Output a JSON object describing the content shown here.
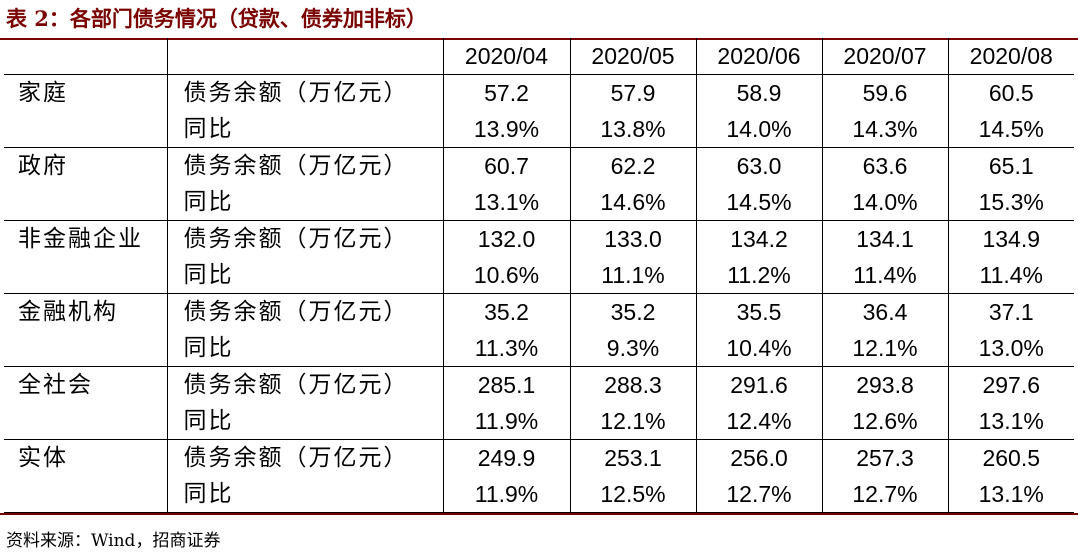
{
  "title": "表 2：各部门债务情况（贷款、债券加非标）",
  "header": {
    "periods": [
      "2020/04",
      "2020/05",
      "2020/06",
      "2020/07",
      "2020/08"
    ]
  },
  "sectors": [
    {
      "name": "家庭",
      "rows": [
        {
          "metric": "债务余额（万亿元）",
          "values": [
            "57.2",
            "57.9",
            "58.9",
            "59.6",
            "60.5"
          ]
        },
        {
          "metric": "同比",
          "values": [
            "13.9%",
            "13.8%",
            "14.0%",
            "14.3%",
            "14.5%"
          ]
        }
      ]
    },
    {
      "name": "政府",
      "rows": [
        {
          "metric": "债务余额（万亿元）",
          "values": [
            "60.7",
            "62.2",
            "63.0",
            "63.6",
            "65.1"
          ]
        },
        {
          "metric": "同比",
          "values": [
            "13.1%",
            "14.6%",
            "14.5%",
            "14.0%",
            "15.3%"
          ]
        }
      ]
    },
    {
      "name": "非金融企业",
      "rows": [
        {
          "metric": "债务余额（万亿元）",
          "values": [
            "132.0",
            "133.0",
            "134.2",
            "134.1",
            "134.9"
          ]
        },
        {
          "metric": "同比",
          "values": [
            "10.6%",
            "11.1%",
            "11.2%",
            "11.4%",
            "11.4%"
          ]
        }
      ]
    },
    {
      "name": "金融机构",
      "rows": [
        {
          "metric": "债务余额（万亿元）",
          "values": [
            "35.2",
            "35.2",
            "35.5",
            "36.4",
            "37.1"
          ]
        },
        {
          "metric": "同比",
          "values": [
            "11.3%",
            "9.3%",
            "10.4%",
            "12.1%",
            "13.0%"
          ]
        }
      ]
    },
    {
      "name": "全社会",
      "rows": [
        {
          "metric": "债务余额（万亿元）",
          "values": [
            "285.1",
            "288.3",
            "291.6",
            "293.8",
            "297.6"
          ]
        },
        {
          "metric": "同比",
          "values": [
            "11.9%",
            "12.1%",
            "12.4%",
            "12.6%",
            "13.1%"
          ]
        }
      ]
    },
    {
      "name": "实体",
      "rows": [
        {
          "metric": "债务余额（万亿元）",
          "values": [
            "249.9",
            "253.1",
            "256.0",
            "257.3",
            "260.5"
          ]
        },
        {
          "metric": "同比",
          "values": [
            "11.9%",
            "12.5%",
            "12.7%",
            "12.7%",
            "13.1%"
          ]
        }
      ]
    }
  ],
  "source": "资料来源：Wind，招商证券",
  "colors": {
    "title": "#7a0000",
    "rule": "#7a0000",
    "text": "#000000"
  }
}
